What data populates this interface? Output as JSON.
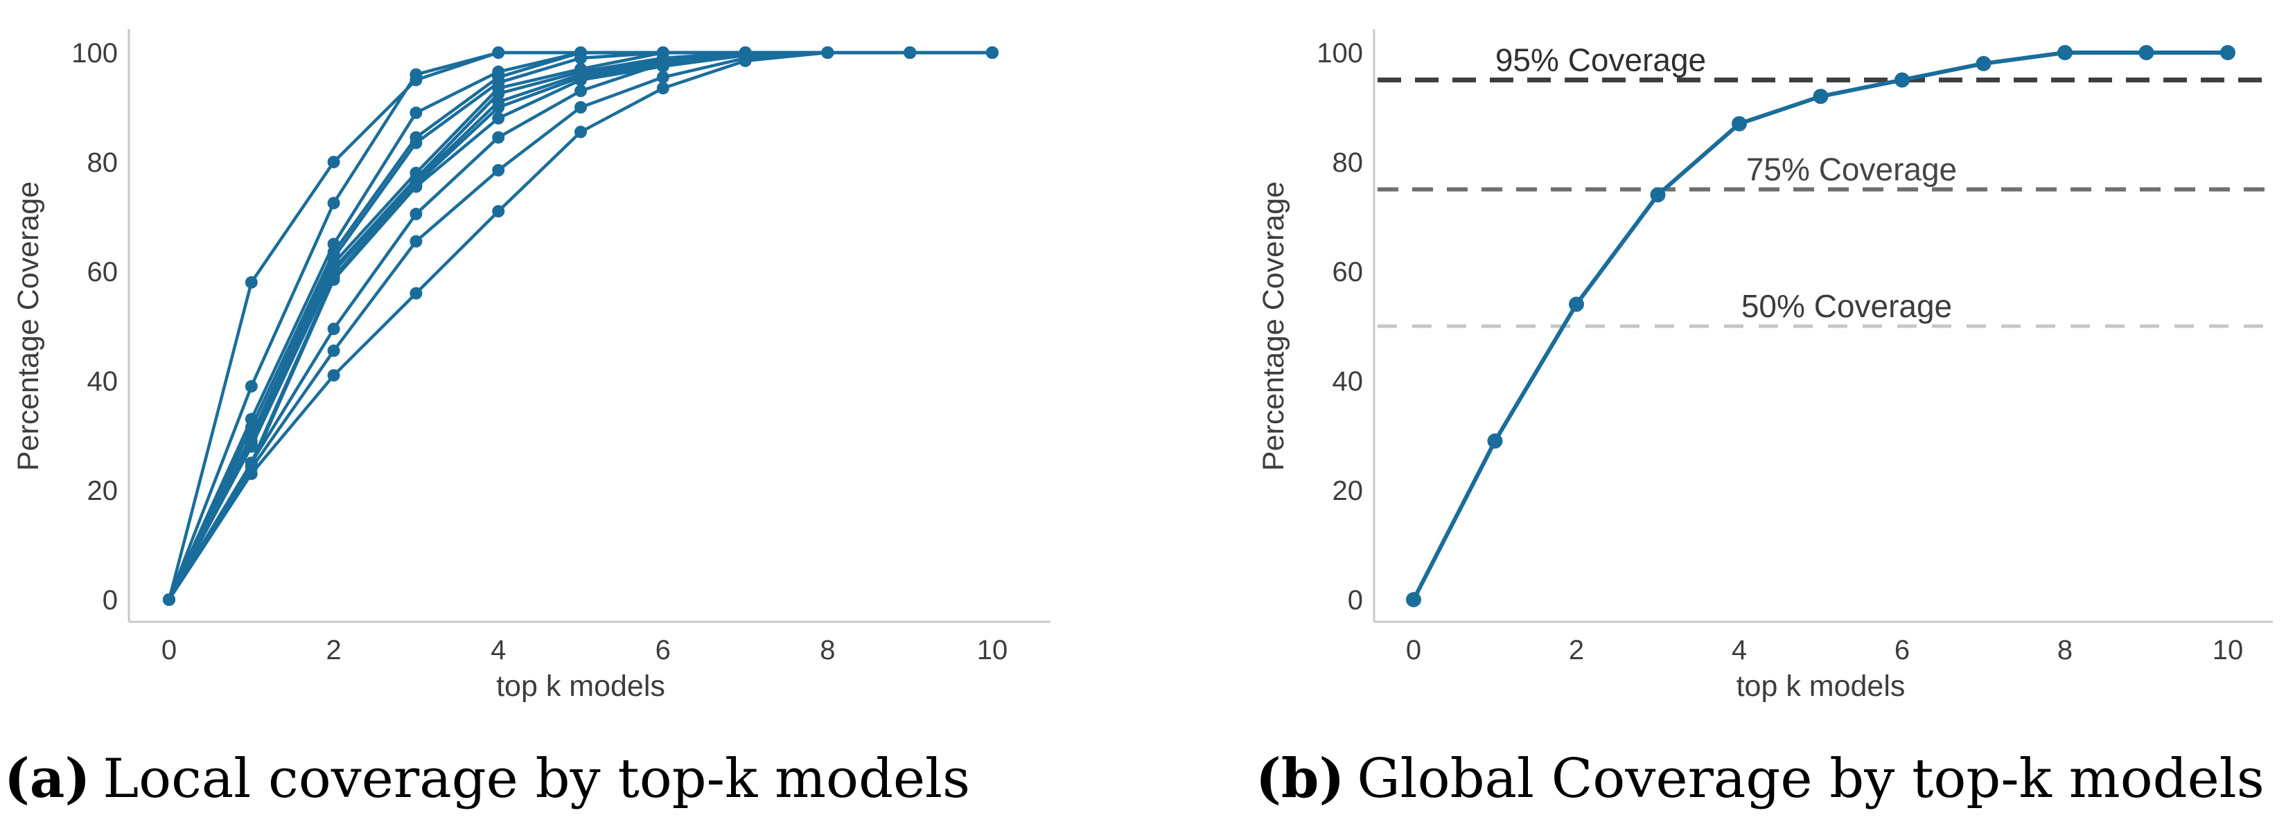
{
  "captions": {
    "a": {
      "tag": "(a)",
      "text": "Local coverage by top-k models"
    },
    "b": {
      "tag": "(b)",
      "text": "Global Coverage by top-k models"
    }
  },
  "colors": {
    "series_blue": "#1a6d9b",
    "spine_gray": "#c9c9c9",
    "tick_text": "#3d3d3d",
    "axis_label_text": "#3d3d3d"
  },
  "reference_styles": {
    "95": {
      "line_color": "#3f3f3f",
      "label_color": "#2f2f2f"
    },
    "75": {
      "line_color": "#6f6f6f",
      "label_color": "#454545"
    },
    "50": {
      "line_color": "#c6c6c6",
      "label_color": "#3c3c3c"
    }
  },
  "chart_data": [
    {
      "id": "local-coverage",
      "type": "line",
      "title": "",
      "xlabel": "top k models",
      "ylabel": "Percentage Coverage",
      "x": [
        0,
        1,
        2,
        3,
        4,
        5,
        6,
        7,
        8,
        9,
        10
      ],
      "xticks": [
        0,
        2,
        4,
        6,
        8,
        10
      ],
      "yticks": [
        0,
        20,
        40,
        60,
        80,
        100
      ],
      "xlim": [
        0,
        10.7
      ],
      "ylim": [
        0,
        100
      ],
      "grid": false,
      "legend": false,
      "markers": true,
      "series": [
        [
          0,
          58,
          80,
          95,
          100,
          100,
          100,
          100,
          100,
          100,
          100
        ],
        [
          0,
          39,
          72.5,
          96,
          100,
          100,
          100,
          100,
          100,
          100,
          100
        ],
        [
          0,
          33,
          65,
          89,
          96.5,
          100,
          100,
          100,
          100,
          100,
          100
        ],
        [
          0,
          31.5,
          63.5,
          84.5,
          95.5,
          100,
          100,
          100,
          100,
          100,
          100
        ],
        [
          0,
          30,
          62.5,
          83.5,
          94.5,
          99,
          100,
          100,
          100,
          100,
          100
        ],
        [
          0,
          29,
          61.5,
          78,
          93.5,
          97,
          100,
          100,
          100,
          100,
          100
        ],
        [
          0,
          28.5,
          60.5,
          77,
          92.5,
          96.5,
          99,
          100,
          100,
          100,
          100
        ],
        [
          0,
          28,
          60,
          76.5,
          91,
          96,
          98.5,
          100,
          100,
          100,
          100
        ],
        [
          0,
          25,
          59,
          76,
          90,
          95.5,
          98,
          100,
          100,
          100,
          100
        ],
        [
          0,
          24.5,
          58.5,
          75.5,
          88,
          95,
          97.5,
          99.5,
          100,
          100,
          100
        ],
        [
          0,
          25,
          49.5,
          70.5,
          84.5,
          93,
          98,
          100,
          100,
          100,
          100
        ],
        [
          0,
          24,
          45.5,
          65.5,
          78.5,
          90,
          95.5,
          99,
          100,
          100,
          100
        ],
        [
          0,
          23,
          41,
          56,
          71,
          85.5,
          93.5,
          98.5,
          100,
          100,
          100
        ]
      ]
    },
    {
      "id": "global-coverage",
      "type": "line",
      "title": "",
      "xlabel": "top k models",
      "ylabel": "Percentage Coverage",
      "x": [
        0,
        1,
        2,
        3,
        4,
        5,
        6,
        7,
        8,
        9,
        10
      ],
      "xticks": [
        0,
        2,
        4,
        6,
        8,
        10
      ],
      "yticks": [
        0,
        20,
        40,
        60,
        80,
        100
      ],
      "xlim": [
        0,
        10.7
      ],
      "ylim": [
        0,
        100
      ],
      "grid": false,
      "legend": false,
      "markers": true,
      "series": [
        [
          0,
          29,
          54,
          74,
          87,
          92,
          95,
          98,
          100,
          100,
          100
        ]
      ],
      "reference_lines": [
        {
          "value": 95,
          "label": "95% Coverage"
        },
        {
          "value": 75,
          "label": "75% Coverage"
        },
        {
          "value": 50,
          "label": "50% Coverage"
        }
      ]
    }
  ]
}
